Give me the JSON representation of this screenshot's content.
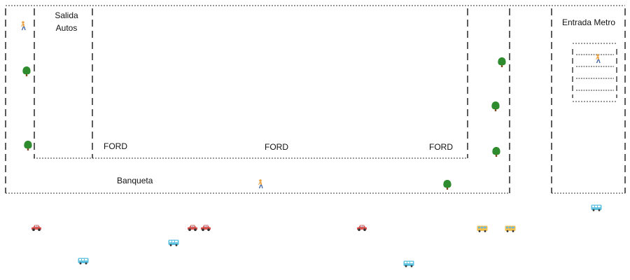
{
  "labels": {
    "salida_line1": "Salida",
    "salida_line2": "Autos",
    "entrada_metro": "Entrada Metro",
    "ford_left": "FORD",
    "ford_center": "FORD",
    "ford_right": "FORD",
    "banqueta": "Banqueta"
  },
  "icons": {
    "pedestrian": "person-walking-icon",
    "tree": "tree-icon",
    "car": "car-icon",
    "bus": "bus-icon"
  },
  "colors": {
    "line": "#333333",
    "tree_canopy": "#2e8b2e",
    "tree_trunk": "#7a4a1e",
    "car_body": "#d9534f",
    "bus_body": "#5bc0de",
    "bus_alt_body": "#f0c050",
    "pedestrian_body": "#e8a040"
  }
}
